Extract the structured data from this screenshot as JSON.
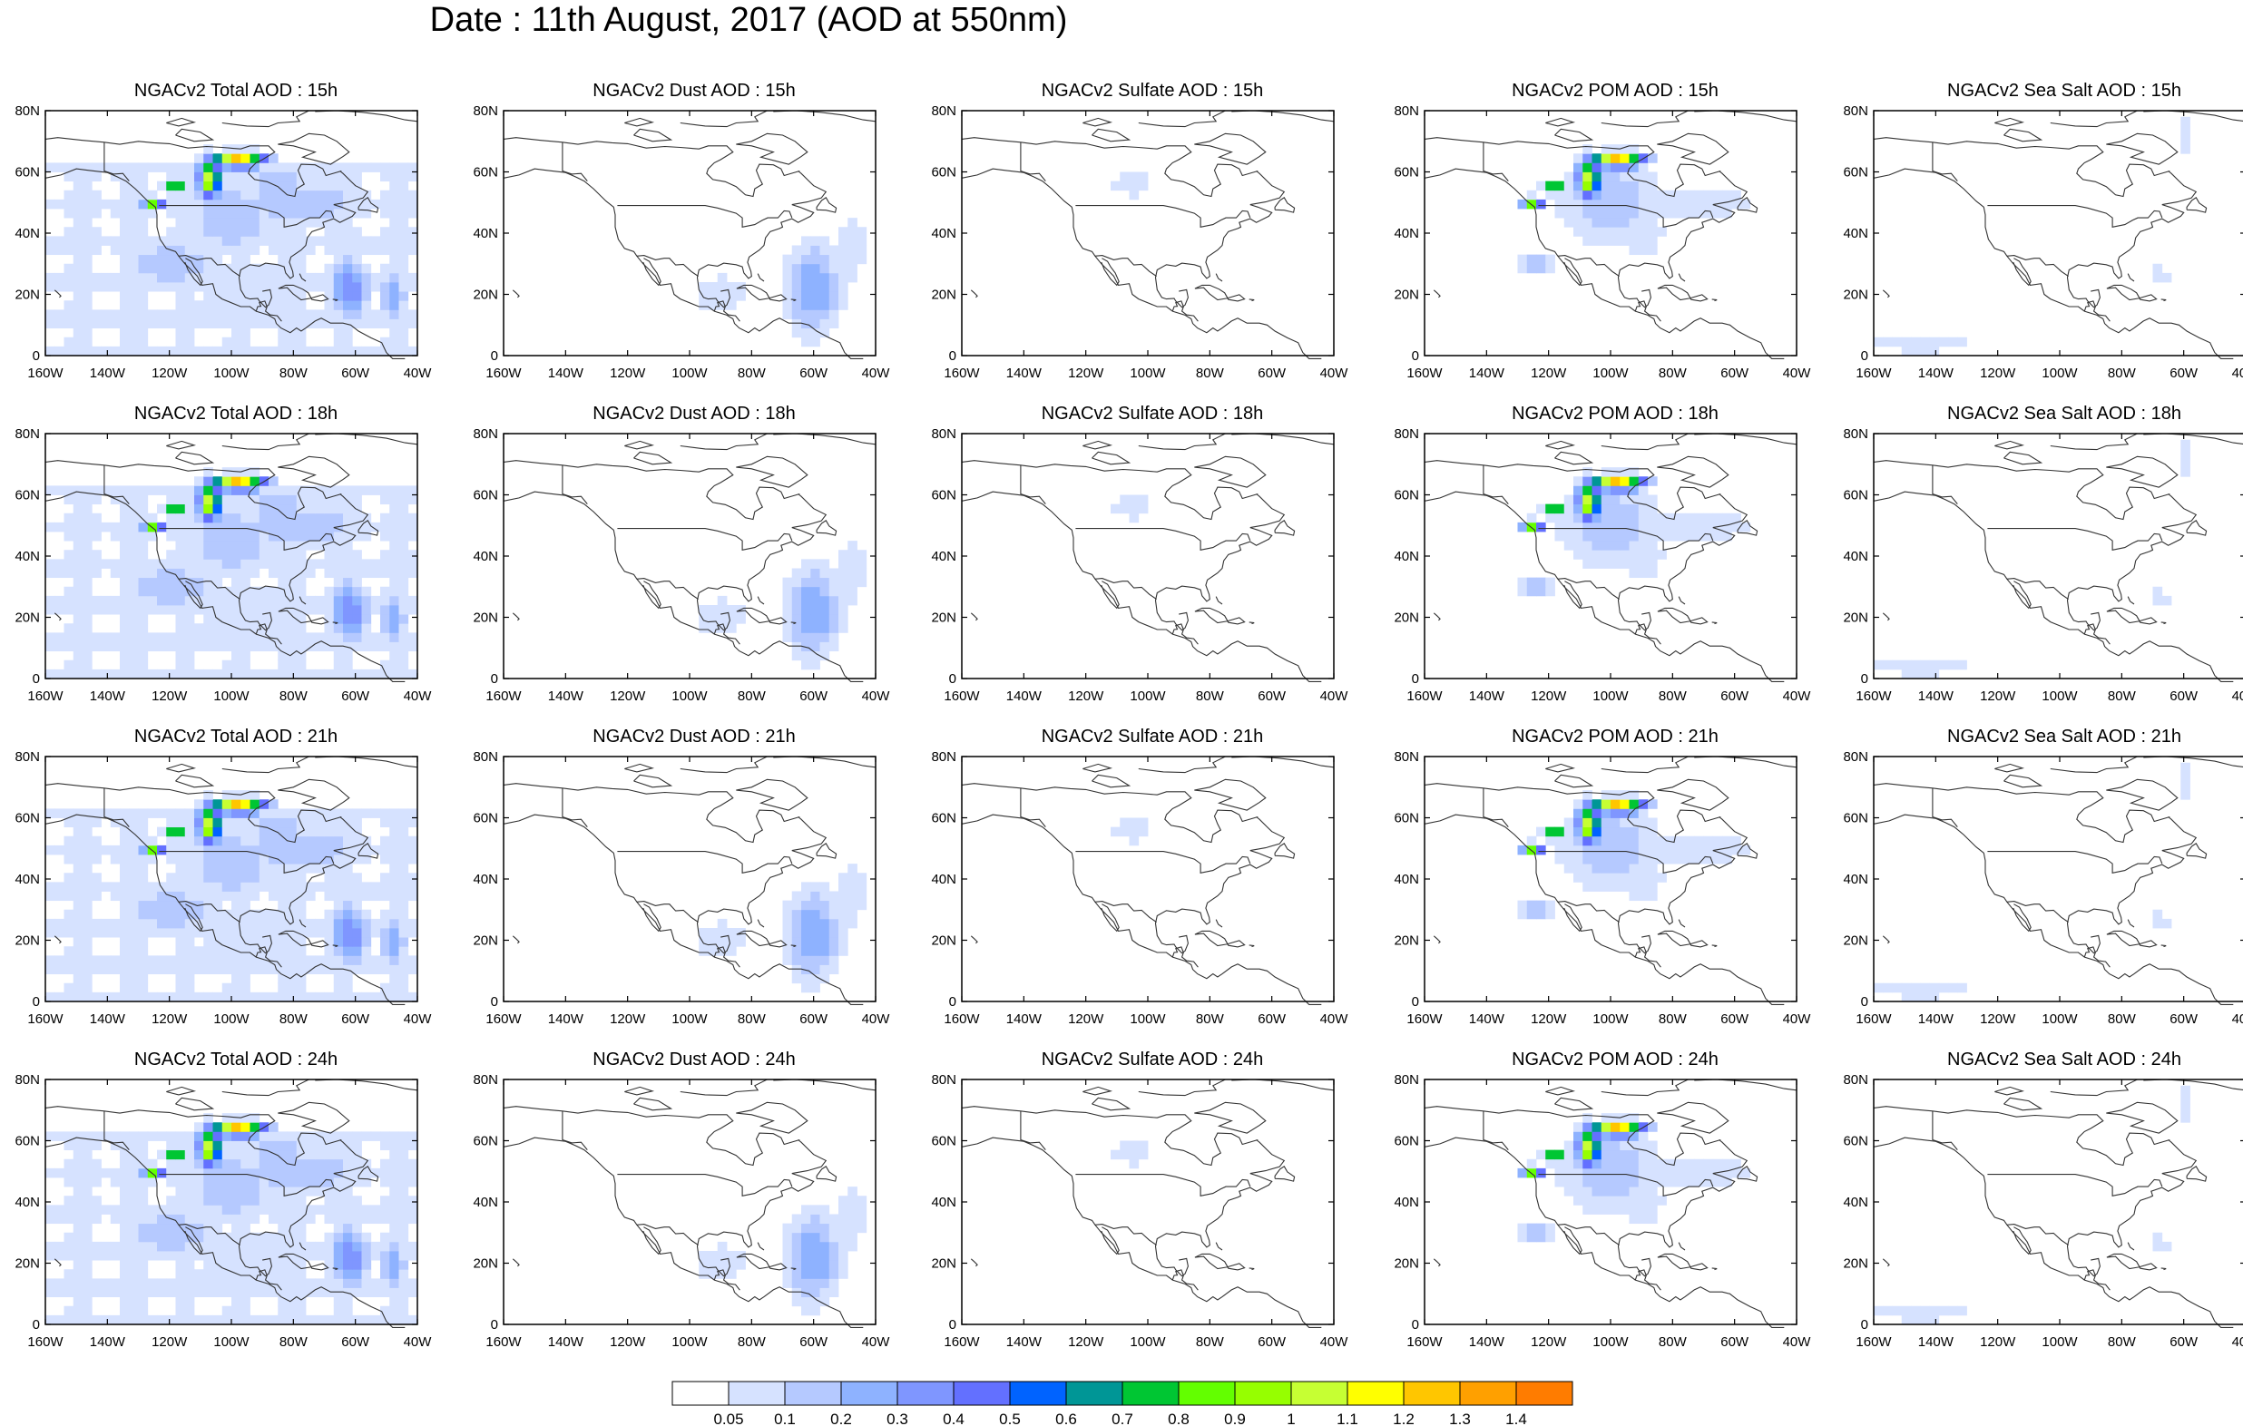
{
  "title": "Date : 11th August, 2017 (AOD at 550nm)",
  "lat_ticks": [
    "80N",
    "60N",
    "40N",
    "20N",
    "0"
  ],
  "lon_ticks": [
    "160W",
    "140W",
    "120W",
    "100W",
    "80W",
    "60W",
    "40W"
  ],
  "columns": [
    {
      "key": "total",
      "pattern": "total"
    },
    {
      "key": "dust",
      "pattern": "dust"
    },
    {
      "key": "sulfate",
      "pattern": "sulfate"
    },
    {
      "key": "pom",
      "pattern": "pom"
    },
    {
      "key": "seasalt",
      "pattern": "seasalt"
    }
  ],
  "panels": [
    [
      "NGACv2 Total AOD : 15h",
      "NGACv2 Dust AOD : 15h",
      "NGACv2 Sulfate AOD : 15h",
      "NGACv2 POM AOD : 15h",
      "NGACv2 Sea Salt AOD : 15h"
    ],
    [
      "NGACv2 Total AOD : 18h",
      "NGACv2 Dust AOD : 18h",
      "NGACv2 Sulfate AOD : 18h",
      "NGACv2 POM AOD : 18h",
      "NGACv2 Sea Salt AOD : 18h"
    ],
    [
      "NGACv2 Total AOD : 21h",
      "NGACv2 Dust AOD : 21h",
      "NGACv2 Sulfate AOD : 21h",
      "NGACv2 POM AOD : 21h",
      "NGACv2 Sea Salt AOD : 21h"
    ],
    [
      "NGACv2 Total AOD : 24h",
      "NGACv2 Dust AOD : 24h",
      "NGACv2 Sulfate AOD : 24h",
      "NGACv2 POM AOD : 24h",
      "NGACv2 Sea Salt  AOD : 24h"
    ]
  ],
  "colorbar": {
    "labels": [
      "0.05",
      "0.1",
      "0.2",
      "0.3",
      "0.4",
      "0.5",
      "0.6",
      "0.7",
      "0.8",
      "0.9",
      "1",
      "1.1",
      "1.2",
      "1.3",
      "1.4"
    ],
    "colors": [
      "#ffffff",
      "#d6e2ff",
      "#b5c9ff",
      "#8eb2ff",
      "#7f96ff",
      "#6370ff",
      "#0063ff",
      "#009696",
      "#00c633",
      "#63ff00",
      "#96ff00",
      "#c6ff33",
      "#ffff00",
      "#ffc600",
      "#ffa000",
      "#ff7c00",
      "#ff1900"
    ]
  }
}
